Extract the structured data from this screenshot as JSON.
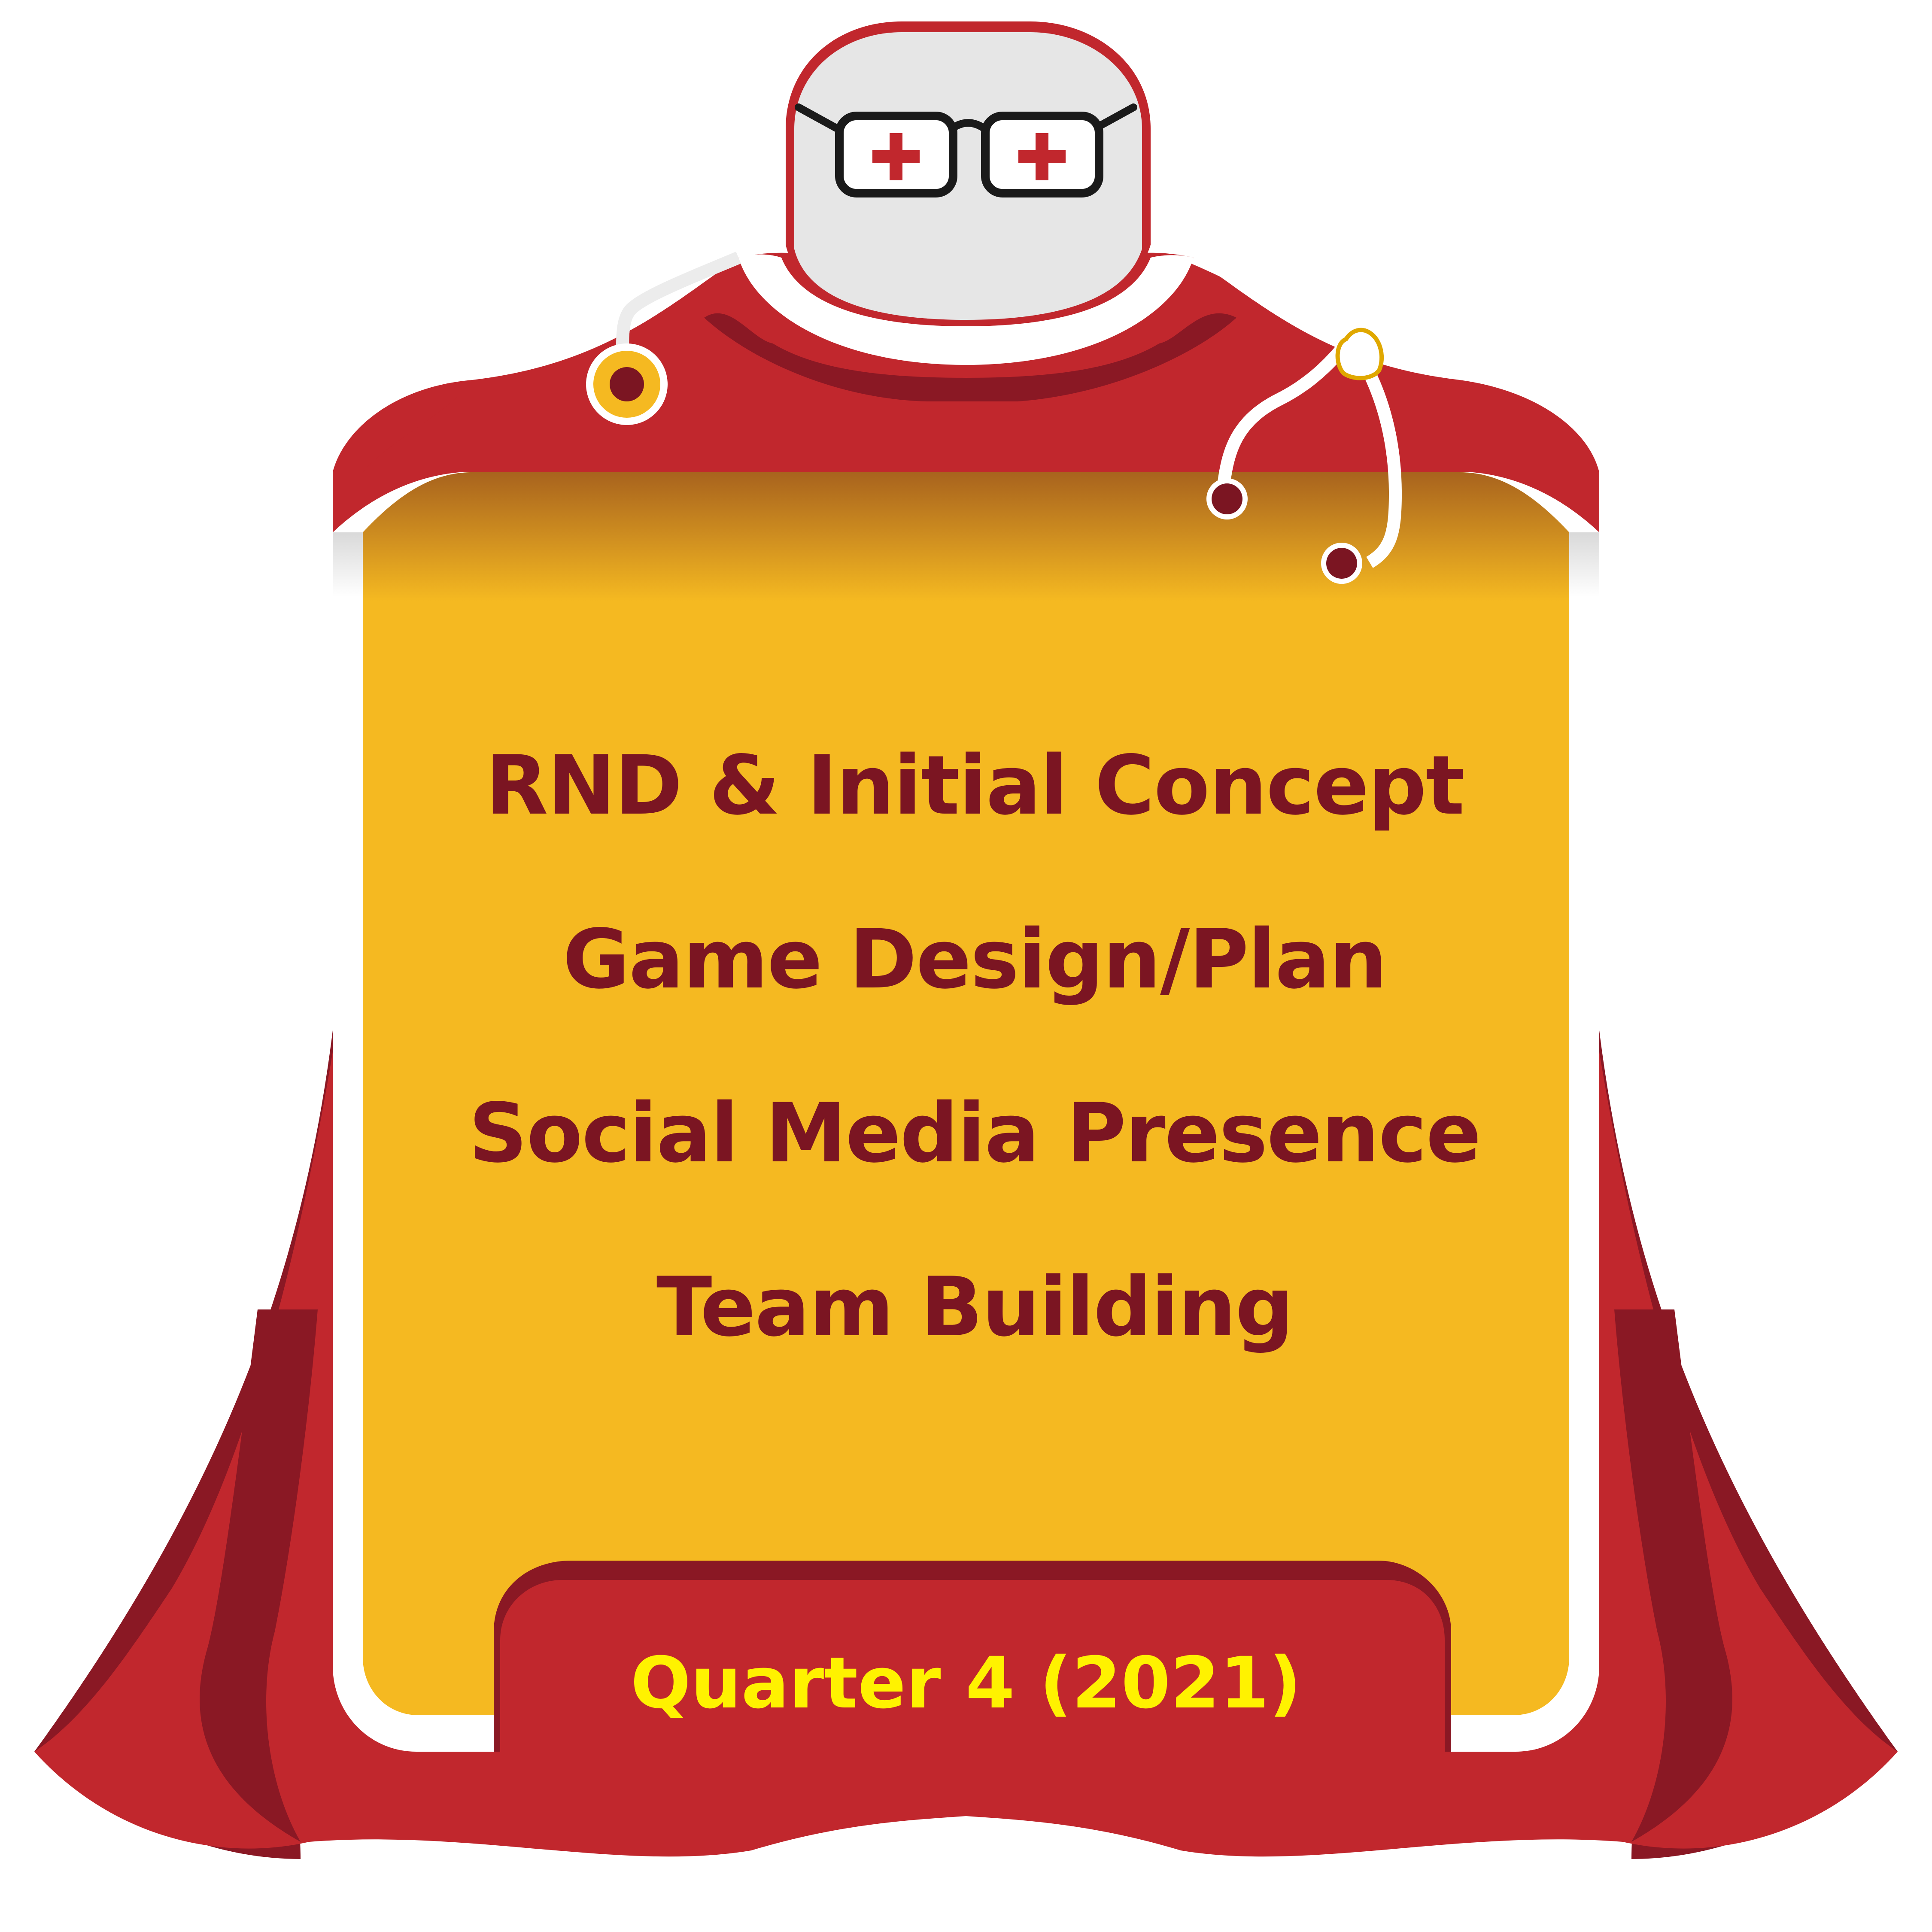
{
  "colors": {
    "cape_red": "#C1272D",
    "cape_dark": "#8A1824",
    "panel_yellow": "#F5B921",
    "text_maroon": "#7B1522",
    "quarter_yellow": "#FFF200",
    "head_gray": "#E6E6E6",
    "outline_black": "#1A1A1A"
  },
  "icons": {
    "glasses": "medical-cross-glasses-icon",
    "stethoscope": "stethoscope-icon"
  },
  "milestones": [
    "RND & Initial Concept",
    "Game Design/Plan",
    "Social Media Presence",
    "Team Building"
  ],
  "quarter_label": "Quarter 4 (2021)"
}
